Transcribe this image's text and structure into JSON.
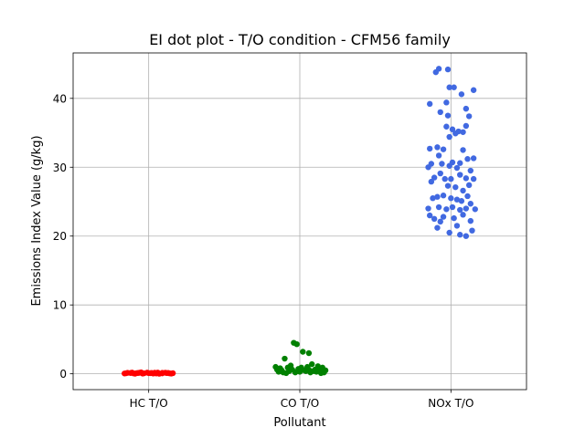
{
  "chart_data": {
    "type": "scatter",
    "title": "EI dot plot - T/O condition - CFM56 family",
    "xlabel": "Pollutant",
    "ylabel": "Emissions Index Value (g/kg)",
    "categories": [
      "HC T/O",
      "CO T/O",
      "NOx T/O"
    ],
    "ylim": [
      -2.3,
      46.6
    ],
    "yticks": [
      0,
      10,
      20,
      30,
      40
    ],
    "grid": true,
    "series": [
      {
        "color": "#ff0000",
        "category": "HC T/O",
        "points": [
          [
            -0.16,
            0.05
          ],
          [
            -0.12,
            0.12
          ],
          [
            -0.09,
            0.02
          ],
          [
            -0.06,
            0.15
          ],
          [
            -0.03,
            0.08
          ],
          [
            0.0,
            0.1
          ],
          [
            0.03,
            0.04
          ],
          [
            0.06,
            0.18
          ],
          [
            0.09,
            0.07
          ],
          [
            0.12,
            0.11
          ],
          [
            0.15,
            0.03
          ],
          [
            -0.14,
            0.14
          ],
          [
            -0.1,
            0.06
          ],
          [
            -0.05,
            0.2
          ],
          [
            0.02,
            0.13
          ],
          [
            0.07,
            0.01
          ],
          [
            0.11,
            0.16
          ],
          [
            0.16,
            0.09
          ],
          [
            -0.08,
            0.1
          ],
          [
            0.05,
            0.05
          ],
          [
            -0.01,
            0.17
          ],
          [
            0.13,
            0.12
          ],
          [
            -0.15,
            0.08
          ],
          [
            0.09,
            0.14
          ],
          [
            -0.04,
            0.03
          ],
          [
            0.01,
            0.09
          ],
          [
            -0.11,
            0.18
          ],
          [
            0.14,
            0.06
          ],
          [
            -0.07,
            0.12
          ],
          [
            0.04,
            0.15
          ]
        ]
      },
      {
        "color": "#008000",
        "category": "CO T/O",
        "points": [
          [
            -0.04,
            4.5
          ],
          [
            -0.02,
            4.3
          ],
          [
            0.02,
            3.2
          ],
          [
            0.06,
            3.0
          ],
          [
            -0.1,
            2.2
          ],
          [
            0.08,
            1.4
          ],
          [
            0.12,
            1.1
          ],
          [
            -0.16,
            1.0
          ],
          [
            -0.13,
            0.8
          ],
          [
            -0.08,
            0.9
          ],
          [
            -0.05,
            0.6
          ],
          [
            -0.01,
            0.7
          ],
          [
            0.03,
            0.5
          ],
          [
            0.1,
            0.6
          ],
          [
            0.15,
            0.9
          ],
          [
            -0.14,
            0.3
          ],
          [
            -0.11,
            0.2
          ],
          [
            -0.07,
            0.4
          ],
          [
            -0.03,
            0.2
          ],
          [
            0.0,
            0.3
          ],
          [
            0.04,
            0.4
          ],
          [
            0.07,
            0.2
          ],
          [
            0.11,
            0.3
          ],
          [
            0.14,
            0.1
          ],
          [
            0.17,
            0.5
          ],
          [
            -0.15,
            0.6
          ],
          [
            0.05,
            1.0
          ],
          [
            -0.06,
            1.2
          ],
          [
            0.13,
            0.7
          ],
          [
            0.09,
            0.4
          ],
          [
            -0.12,
            0.5
          ],
          [
            0.01,
            0.9
          ],
          [
            0.16,
            0.2
          ],
          [
            -0.09,
            0.1
          ],
          [
            0.06,
            0.6
          ]
        ]
      },
      {
        "color": "#4169e1",
        "category": "NOx T/O",
        "points": [
          [
            -0.08,
            44.3
          ],
          [
            -0.1,
            43.8
          ],
          [
            -0.02,
            44.2
          ],
          [
            -0.01,
            41.6
          ],
          [
            0.02,
            41.6
          ],
          [
            0.15,
            41.2
          ],
          [
            0.07,
            40.6
          ],
          [
            -0.03,
            39.4
          ],
          [
            -0.14,
            39.2
          ],
          [
            0.1,
            38.5
          ],
          [
            -0.07,
            38.0
          ],
          [
            -0.02,
            37.5
          ],
          [
            0.12,
            37.4
          ],
          [
            0.1,
            36.0
          ],
          [
            -0.03,
            35.9
          ],
          [
            0.01,
            35.5
          ],
          [
            0.05,
            35.2
          ],
          [
            0.03,
            34.9
          ],
          [
            -0.01,
            34.4
          ],
          [
            0.08,
            35.1
          ],
          [
            -0.14,
            32.7
          ],
          [
            -0.09,
            32.9
          ],
          [
            -0.05,
            32.6
          ],
          [
            0.08,
            32.5
          ],
          [
            -0.08,
            31.7
          ],
          [
            0.11,
            31.2
          ],
          [
            0.15,
            31.3
          ],
          [
            -0.13,
            30.5
          ],
          [
            -0.06,
            30.5
          ],
          [
            0.01,
            30.7
          ],
          [
            0.06,
            30.6
          ],
          [
            -0.15,
            30.0
          ],
          [
            -0.01,
            30.2
          ],
          [
            0.04,
            29.9
          ],
          [
            0.13,
            29.5
          ],
          [
            -0.07,
            29.1
          ],
          [
            0.06,
            28.9
          ],
          [
            -0.11,
            28.5
          ],
          [
            -0.04,
            28.3
          ],
          [
            0.0,
            28.3
          ],
          [
            0.1,
            28.4
          ],
          [
            0.15,
            28.3
          ],
          [
            -0.13,
            27.9
          ],
          [
            -0.02,
            27.3
          ],
          [
            0.03,
            27.1
          ],
          [
            0.12,
            27.4
          ],
          [
            0.08,
            26.6
          ],
          [
            -0.05,
            25.9
          ],
          [
            -0.09,
            25.7
          ],
          [
            0.0,
            25.5
          ],
          [
            0.04,
            25.3
          ],
          [
            0.11,
            25.8
          ],
          [
            -0.12,
            25.5
          ],
          [
            0.07,
            25.1
          ],
          [
            0.13,
            24.7
          ],
          [
            -0.15,
            24.0
          ],
          [
            -0.08,
            24.2
          ],
          [
            -0.03,
            23.9
          ],
          [
            0.01,
            24.2
          ],
          [
            0.06,
            23.8
          ],
          [
            0.1,
            24.0
          ],
          [
            0.16,
            23.9
          ],
          [
            -0.14,
            23.0
          ],
          [
            -0.11,
            22.5
          ],
          [
            -0.05,
            22.8
          ],
          [
            0.02,
            22.6
          ],
          [
            0.08,
            23.1
          ],
          [
            -0.07,
            22.1
          ],
          [
            0.04,
            21.5
          ],
          [
            0.13,
            22.2
          ],
          [
            -0.01,
            20.5
          ],
          [
            0.06,
            20.2
          ],
          [
            0.14,
            20.8
          ],
          [
            0.1,
            20.0
          ],
          [
            -0.09,
            21.2
          ]
        ]
      }
    ]
  }
}
